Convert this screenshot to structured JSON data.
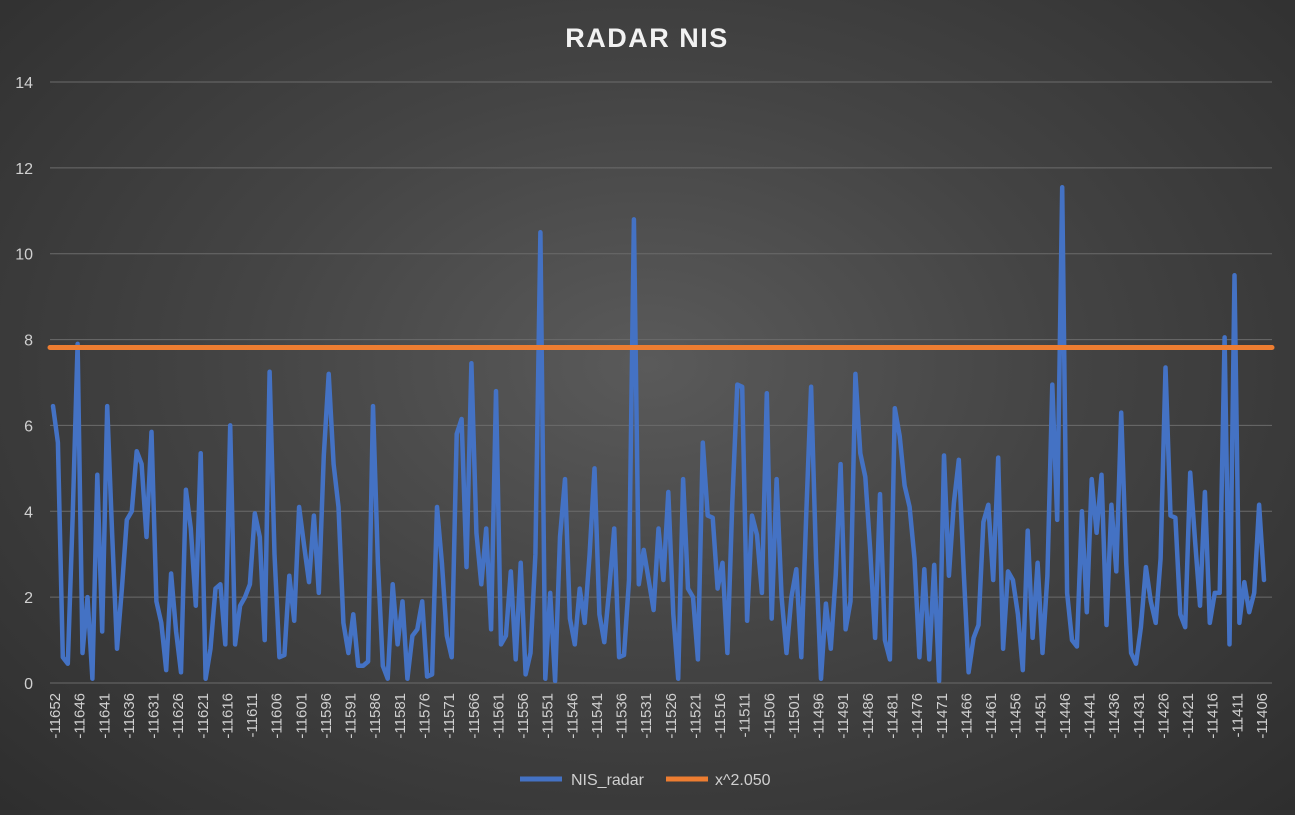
{
  "chart_data": {
    "type": "line",
    "title": "RADAR NIS",
    "xlabel": "",
    "ylabel": "",
    "ylim": [
      0,
      14
    ],
    "yticks": [
      0,
      2,
      4,
      6,
      8,
      10,
      12,
      14
    ],
    "x_start": -11652,
    "x_end": -11406,
    "x_tick_labels": [
      "-11652",
      "-11646",
      "-11641",
      "-11636",
      "-11631",
      "-11626",
      "-11621",
      "-11616",
      "-11611",
      "-11606",
      "-11601",
      "-11596",
      "-11591",
      "-11586",
      "-11581",
      "-11576",
      "-11571",
      "-11566",
      "-11561",
      "-11556",
      "-11551",
      "-11546",
      "-11541",
      "-11536",
      "-11531",
      "-11526",
      "-11521",
      "-11516",
      "-11511",
      "-11506",
      "-11501",
      "-11496",
      "-11491",
      "-11486",
      "-11481",
      "-11476",
      "-11471",
      "-11466",
      "-11461",
      "-11456",
      "-11451",
      "-11446",
      "-11441",
      "-11436",
      "-11431",
      "-11426",
      "-11421",
      "-11416",
      "-11411",
      "-11406"
    ],
    "grid": true,
    "legend_position": "bottom",
    "colors": {
      "NIS_radar": "#4472c4",
      "x^2.050": "#ed7d31"
    },
    "series": [
      {
        "name": "NIS_radar",
        "values": [
          6.45,
          5.6,
          0.6,
          0.45,
          3.9,
          7.9,
          0.7,
          2.0,
          0.1,
          4.85,
          1.2,
          6.45,
          3.5,
          0.8,
          2.2,
          3.8,
          4.0,
          5.4,
          5.1,
          3.4,
          5.85,
          1.9,
          1.4,
          0.3,
          2.55,
          1.2,
          0.25,
          4.5,
          3.6,
          1.8,
          5.35,
          0.1,
          0.8,
          2.2,
          2.3,
          0.9,
          6.0,
          0.9,
          1.8,
          2.0,
          2.3,
          3.95,
          3.4,
          1.0,
          7.25,
          3.0,
          0.6,
          0.65,
          2.5,
          1.45,
          4.1,
          3.2,
          2.35,
          3.9,
          2.1,
          5.3,
          7.2,
          5.1,
          4.1,
          1.4,
          0.7,
          1.6,
          0.4,
          0.4,
          0.5,
          6.45,
          2.8,
          0.4,
          0.1,
          2.3,
          0.9,
          1.9,
          0.1,
          1.1,
          1.25,
          1.9,
          0.15,
          0.2,
          4.1,
          2.8,
          1.1,
          0.6,
          5.8,
          6.15,
          2.7,
          7.45,
          3.5,
          2.3,
          3.6,
          1.25,
          6.8,
          0.9,
          1.1,
          2.6,
          0.55,
          2.8,
          0.2,
          0.7,
          3.0,
          10.5,
          0.1,
          2.1,
          0.05,
          3.4,
          4.75,
          1.5,
          0.9,
          2.2,
          1.4,
          3.0,
          5.0,
          1.6,
          0.95,
          2.2,
          3.6,
          0.6,
          0.65,
          2.4,
          10.8,
          2.3,
          3.1,
          2.4,
          1.7,
          3.6,
          2.4,
          4.45,
          1.6,
          0.1,
          4.75,
          2.2,
          2.0,
          0.55,
          5.6,
          3.9,
          3.85,
          2.2,
          2.8,
          0.7,
          4.2,
          6.95,
          6.9,
          1.45,
          3.9,
          3.45,
          2.1,
          6.75,
          1.5,
          4.75,
          2.0,
          0.7,
          2.0,
          2.65,
          0.6,
          3.9,
          6.9,
          2.9,
          0.1,
          1.85,
          0.8,
          2.5,
          5.1,
          1.25,
          1.9,
          7.2,
          5.35,
          4.8,
          3.1,
          1.05,
          4.4,
          1.0,
          0.55,
          6.4,
          5.75,
          4.6,
          4.1,
          2.9,
          0.6,
          2.65,
          0.55,
          2.75,
          0.05,
          5.3,
          2.5,
          4.2,
          5.2,
          2.6,
          0.25,
          1.05,
          1.35,
          3.75,
          4.15,
          2.4,
          5.25,
          0.8,
          2.6,
          2.4,
          1.6,
          0.3,
          3.55,
          1.05,
          2.8,
          0.7,
          2.5,
          6.95,
          3.8,
          11.55,
          2.1,
          1.0,
          0.85,
          4.0,
          1.65,
          4.75,
          3.5,
          4.85,
          1.35,
          4.15,
          2.6,
          6.3,
          2.8,
          0.7,
          0.45,
          1.3,
          2.7,
          1.9,
          1.4,
          2.9,
          7.35,
          3.9,
          3.85,
          1.6,
          1.3,
          4.9,
          3.3,
          1.8,
          4.45,
          1.4,
          2.1,
          2.1,
          8.05,
          0.9,
          9.5,
          1.4,
          2.35,
          1.65,
          2.1,
          4.15,
          2.4
        ]
      },
      {
        "name": "x^2.050",
        "values": [
          7.815,
          7.815
        ]
      }
    ]
  }
}
